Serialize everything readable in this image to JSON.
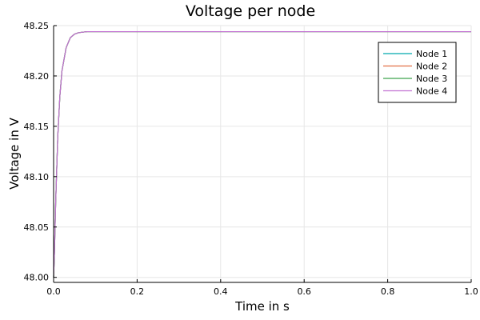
{
  "chart_data": {
    "type": "line",
    "title": "Voltage per node",
    "xlabel": "Time in s",
    "ylabel": "Voltage in V",
    "xlim": [
      0.0,
      1.0
    ],
    "ylim": [
      47.995,
      48.25
    ],
    "x_ticks": [
      "0.0",
      "0.2",
      "0.4",
      "0.6",
      "0.8",
      "1.0"
    ],
    "y_ticks": [
      "48.00",
      "48.05",
      "48.10",
      "48.15",
      "48.20",
      "48.25"
    ],
    "grid": true,
    "legend_position": "top-right",
    "x": [
      0.0,
      0.002,
      0.005,
      0.01,
      0.015,
      0.02,
      0.03,
      0.04,
      0.05,
      0.06,
      0.07,
      0.08,
      0.1,
      0.2,
      0.4,
      0.6,
      0.8,
      1.0
    ],
    "series": [
      {
        "name": "Node 1",
        "color": "#00a9ad",
        "values": [
          48.0,
          48.025,
          48.075,
          48.14,
          48.18,
          48.205,
          48.228,
          48.238,
          48.2415,
          48.243,
          48.2435,
          48.244,
          48.244,
          48.244,
          48.244,
          48.244,
          48.244,
          48.244
        ]
      },
      {
        "name": "Node 2",
        "color": "#e26f46",
        "values": [
          48.0,
          48.025,
          48.075,
          48.14,
          48.18,
          48.205,
          48.228,
          48.238,
          48.2415,
          48.243,
          48.2435,
          48.244,
          48.244,
          48.244,
          48.244,
          48.244,
          48.244,
          48.244
        ]
      },
      {
        "name": "Node 3",
        "color": "#3da44d",
        "values": [
          48.0,
          48.025,
          48.075,
          48.14,
          48.18,
          48.205,
          48.228,
          48.238,
          48.2415,
          48.243,
          48.2435,
          48.244,
          48.244,
          48.244,
          48.244,
          48.244,
          48.244,
          48.244
        ]
      },
      {
        "name": "Node 4",
        "color": "#c271d2",
        "values": [
          48.0,
          48.025,
          48.075,
          48.14,
          48.18,
          48.205,
          48.228,
          48.238,
          48.2415,
          48.243,
          48.2435,
          48.244,
          48.244,
          48.244,
          48.244,
          48.244,
          48.244,
          48.244
        ]
      }
    ]
  }
}
